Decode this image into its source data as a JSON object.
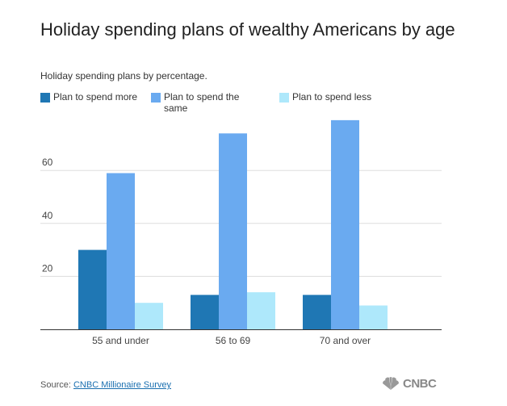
{
  "chart_data": {
    "type": "bar",
    "title": "Holiday spending plans of wealthy Americans by age",
    "subtitle": "Holiday spending plans by percentage.",
    "categories": [
      "55 and under",
      "56 to 69",
      "70 and over"
    ],
    "series": [
      {
        "name": "Plan to spend more",
        "color": "#1f77b4",
        "values": [
          30,
          13,
          13
        ]
      },
      {
        "name": "Plan to spend the same",
        "color": "#6aaaf0",
        "values": [
          59,
          74,
          79
        ]
      },
      {
        "name": "Plan to spend less",
        "color": "#aee8fb",
        "values": [
          10,
          14,
          9
        ]
      }
    ],
    "yticks": [
      20,
      40,
      60
    ],
    "ylim": [
      0,
      80
    ],
    "grid": true,
    "legend_position": "top-left",
    "xlabel": "",
    "ylabel": ""
  },
  "source": {
    "label": "Source:",
    "link_text": "CNBC Millionaire Survey"
  },
  "logo": {
    "text": "CNBC",
    "icon": "peacock-icon"
  }
}
